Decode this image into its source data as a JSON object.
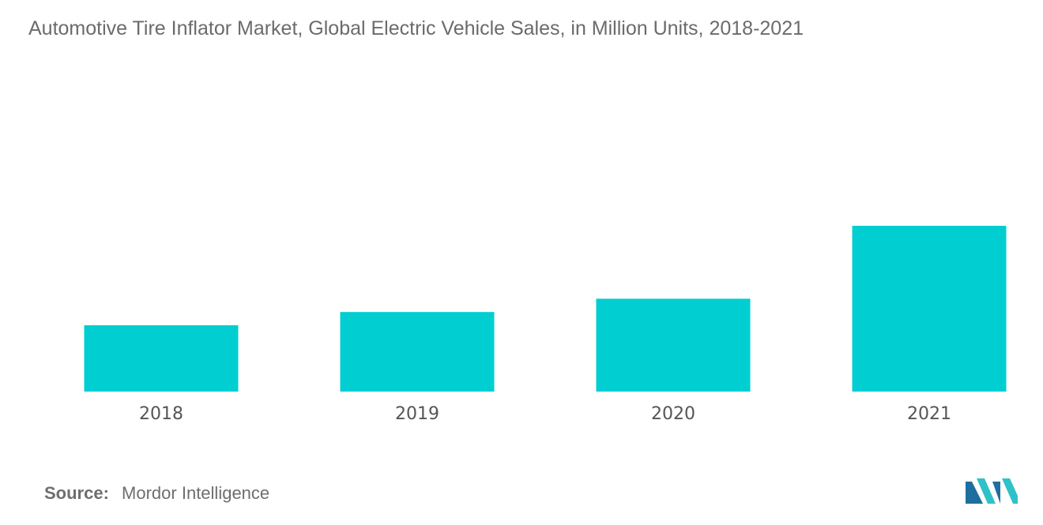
{
  "title": "Automotive Tire Inflator Market, Global Electric Vehicle Sales, in Million Units, 2018-2021",
  "source": {
    "label": "Source:",
    "value": "Mordor Intelligence"
  },
  "colors": {
    "bar": "#00CED1",
    "logo_dark": "#1e6f9f",
    "logo_light": "#2fc1c8"
  },
  "chart_data": {
    "type": "bar",
    "categories": [
      "2018",
      "2019",
      "2020",
      "2021"
    ],
    "values": [
      2.0,
      2.4,
      2.8,
      5.0
    ],
    "title": "Automotive Tire Inflator Market, Global Electric Vehicle Sales, in Million Units, 2018-2021",
    "xlabel": "",
    "ylabel": "",
    "ylim": [
      0,
      7.5
    ],
    "grid": false,
    "legend": "none"
  }
}
